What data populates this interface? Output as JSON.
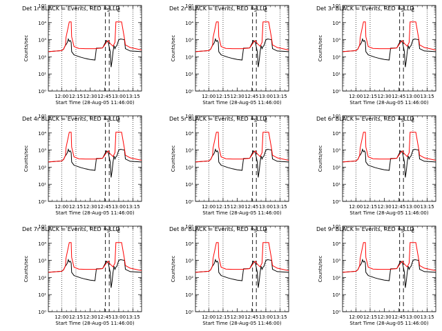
{
  "chart_data": {
    "type": "line",
    "panels": [
      {
        "title": "Det 1r BLACK = Events, RED = LLD"
      },
      {
        "title": "Det 2r BLACK = Events, RED = LLD"
      },
      {
        "title": "Det 3r BLACK = Events, RED = LLD"
      },
      {
        "title": "Det 4r BLACK = Events, RED = LLD"
      },
      {
        "title": "Det 5r BLACK = Events, RED = LLD"
      },
      {
        "title": "Det 6r BLACK = Events, RED = LLD"
      },
      {
        "title": "Det 7r BLACK = Events, RED = LLD"
      },
      {
        "title": "Det 8r BLACK = Events, RED = LLD"
      },
      {
        "title": "Det 9r BLACK = Events, RED = LLD"
      }
    ],
    "ylabel": "Counts/sec",
    "xlabel": "Start Time (28-Aug-05 11:46:00)",
    "x_tick_labels": [
      "12:00",
      "12:15",
      "12:30",
      "12:45",
      "13:00",
      "13:15"
    ],
    "x_tick_minutes": [
      0,
      15,
      30,
      45,
      60,
      75
    ],
    "y_tick_labels": [
      "10⁰",
      "10¹",
      "10²",
      "10³",
      "10⁴",
      "10⁵"
    ],
    "y_scale": "log",
    "ylim": [
      1,
      100000
    ],
    "xlim_minutes": [
      -14,
      84
    ],
    "colors": {
      "events": "#000000",
      "lld": "#ff0000"
    },
    "vertical_lines": {
      "dotted_minutes": [
        0,
        15,
        60,
        75
      ],
      "dashed_minutes": [
        46,
        50
      ]
    },
    "top_markers": [
      {
        "label": "S",
        "minute": 49
      },
      {
        "label": "E",
        "minute": 60
      }
    ],
    "series": [
      {
        "name": "LLD",
        "x": [
          -14,
          0,
          2,
          4,
          4.5,
          8,
          9,
          10,
          10.5,
          13,
          18,
          25,
          35,
          43,
          47,
          49,
          51,
          54,
          56,
          57,
          60,
          63,
          66,
          67,
          72,
          84
        ],
        "y": [
          200,
          230,
          280,
          480,
          1300,
          11000,
          11000,
          11000,
          1500,
          400,
          310,
          300,
          300,
          330,
          700,
          900,
          600,
          420,
          700,
          11000,
          11000,
          11000,
          1200,
          500,
          350,
          250
        ]
      },
      {
        "name": "Events",
        "x": [
          -14,
          0,
          2,
          4,
          4.5,
          6,
          7,
          8,
          9,
          10,
          10.5,
          13,
          20,
          25,
          30,
          35,
          36.5,
          43,
          46,
          47,
          49,
          51,
          52,
          53,
          54,
          55,
          56,
          57,
          58,
          60,
          62,
          64,
          66,
          67,
          72,
          84
        ],
        "y": [
          200,
          230,
          280,
          480,
          500,
          700,
          1100,
          800,
          900,
          700,
          200,
          130,
          95,
          80,
          70,
          65,
          320,
          330,
          700,
          900,
          700,
          200,
          25,
          60,
          200,
          450,
          300,
          400,
          450,
          1000,
          1100,
          1050,
          1000,
          300,
          220,
          200
        ]
      }
    ]
  }
}
